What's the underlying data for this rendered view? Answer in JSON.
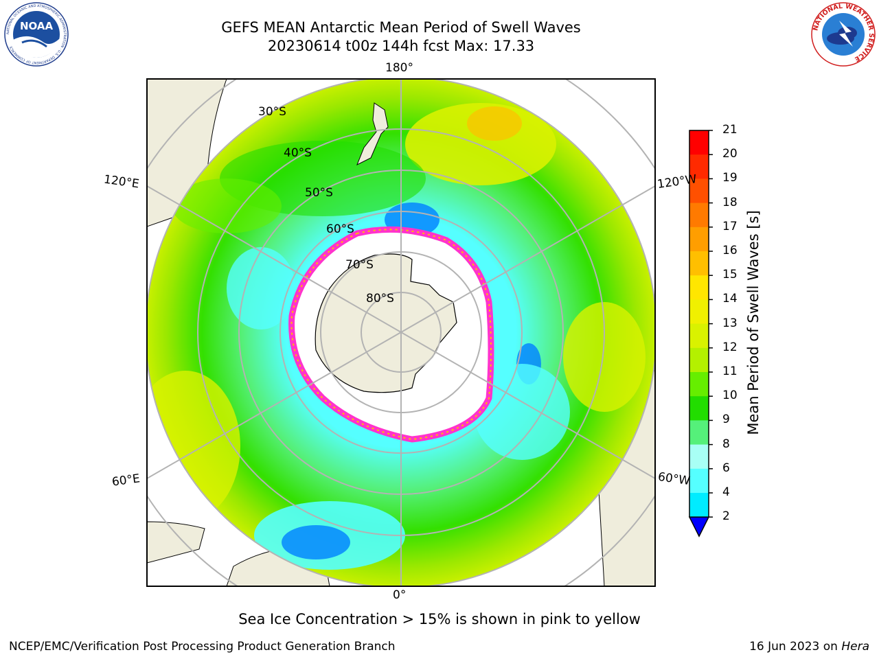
{
  "title": {
    "line1": "GEFS MEAN Antarctic Mean Period of Swell Waves",
    "line2": "20230614 t00z 144h fcst   Max: 17.33"
  },
  "logos": {
    "noaa": {
      "text": "NOAA",
      "ring_text": "NATIONAL OCEANIC AND ATMOSPHERIC ADMINISTRATION · U.S. DEPARTMENT OF COMMERCE"
    },
    "nws": {
      "ring_text": "NATIONAL WEATHER SERVICE"
    }
  },
  "map": {
    "projection": "south-polar-stereographic",
    "colors": {
      "land": "#efeddc",
      "ice_interior": "#ffffff",
      "sea_ice_edge": "#ff33cc",
      "graticule": "#b3b3b3"
    },
    "longitude_labels": {
      "top": "180°",
      "bottom": "0°",
      "left_upper": "120°E",
      "left_lower": "60°E",
      "right_upper": "120°W",
      "right_lower": "60°W"
    },
    "latitude_labels": [
      "30°S",
      "40°S",
      "50°S",
      "60°S",
      "70°S",
      "80°S"
    ]
  },
  "colorbar": {
    "title": "Mean Period of Swell Waves [s]",
    "ticks": [
      "21",
      "20",
      "19",
      "18",
      "17",
      "16",
      "15",
      "14",
      "13",
      "12",
      "11",
      "10",
      "9",
      "8",
      "6",
      "4",
      "2"
    ],
    "colors": [
      "#ff0000",
      "#ff2a00",
      "#ff5000",
      "#ff7a00",
      "#ff9e00",
      "#ffbf00",
      "#ffe600",
      "#f0f000",
      "#d9f200",
      "#b4f000",
      "#66ee00",
      "#22dd00",
      "#55f07a",
      "#a8fff5",
      "#55ffff",
      "#00ecff",
      "#0080ff"
    ],
    "under_color": "#0000ff"
  },
  "caption": "Sea Ice Concentration > 15% is shown in pink to yellow",
  "footer": {
    "left": "NCEP/EMC/Verification Post Processing Product Generation Branch",
    "right_date": "16 Jun 2023 on ",
    "right_host": "Hera"
  }
}
